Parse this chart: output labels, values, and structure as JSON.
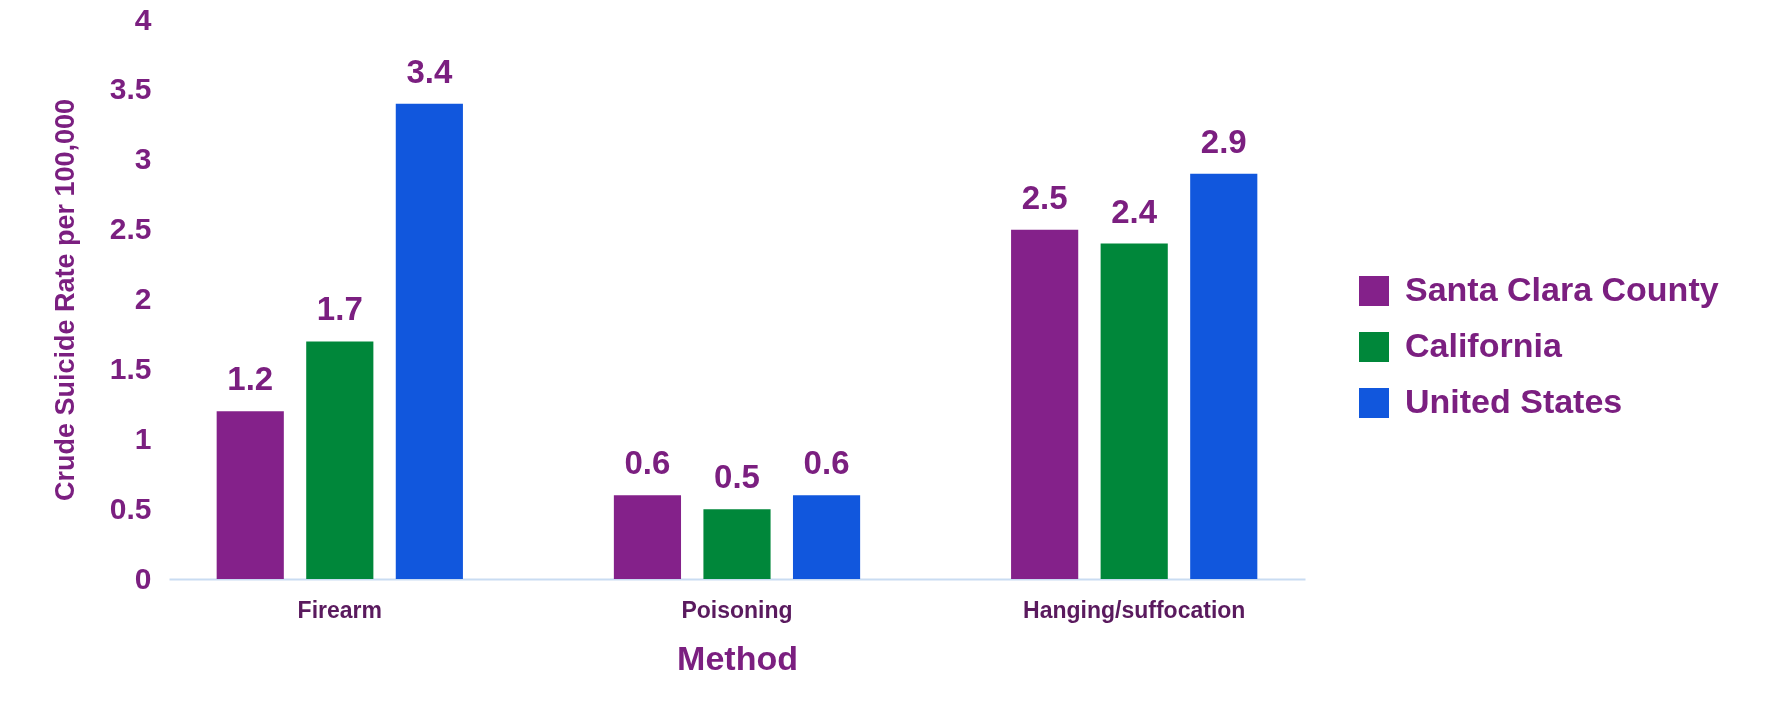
{
  "chart_data": {
    "type": "bar",
    "xlabel": "Method",
    "ylabel": "Crude Suicide Rate per 100,000",
    "categories": [
      "Firearm",
      "Poisoning",
      "Hanging/suffocation"
    ],
    "series": [
      {
        "name": "Santa Clara County",
        "color": "#84218a",
        "values": [
          1.2,
          0.6,
          2.5
        ]
      },
      {
        "name": "California",
        "color": "#00873a",
        "values": [
          1.7,
          0.5,
          2.4
        ]
      },
      {
        "name": "United States",
        "color": "#1157dd",
        "values": [
          3.4,
          0.6,
          2.9
        ]
      }
    ],
    "ylim": [
      0,
      4
    ],
    "yticks": [
      0,
      0.5,
      1,
      1.5,
      2,
      2.5,
      3,
      3.5,
      4
    ],
    "grid": false,
    "legend": "right",
    "data_labels": true
  }
}
